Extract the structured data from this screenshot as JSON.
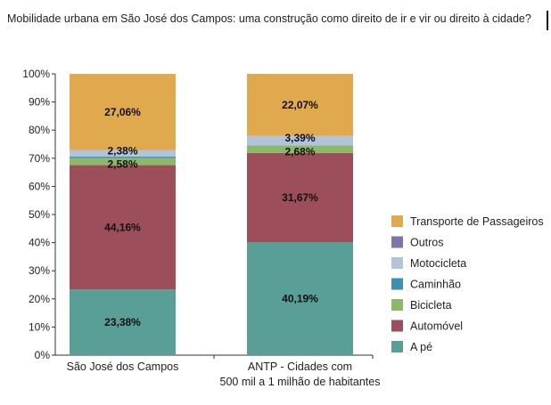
{
  "header": {
    "title": "Mobilidade urbana em São José dos Campos: uma construção como direito de ir e vir ou direito à cidade?"
  },
  "chart_data": {
    "type": "bar",
    "stacked": true,
    "categories": [
      [
        "São José dos Campos"
      ],
      [
        "ANTP - Cidades com",
        "500 mil a 1 milhão de habitantes"
      ]
    ],
    "ylim": [
      0,
      100
    ],
    "yticks": [
      "0%",
      "10%",
      "20%",
      "30%",
      "40%",
      "50%",
      "60%",
      "70%",
      "80%",
      "90%",
      "100%"
    ],
    "legend_position": "right",
    "grid": false,
    "series": [
      {
        "name": "A pé",
        "color": "#5a9e98",
        "values": [
          23.38,
          40.19
        ],
        "labels": [
          "23,38%",
          "40,19%"
        ]
      },
      {
        "name": "Automóvel",
        "color": "#9c4f5b",
        "values": [
          44.16,
          31.67
        ],
        "labels": [
          "44,16%",
          "31,67%"
        ]
      },
      {
        "name": "Bicicleta",
        "color": "#8db86a",
        "values": [
          2.58,
          2.68
        ],
        "labels": [
          "2,58%",
          "2,68%"
        ]
      },
      {
        "name": "Caminhão",
        "color": "#3f8fb0",
        "values": [
          0.44,
          0.0
        ],
        "labels": [
          "",
          ""
        ]
      },
      {
        "name": "Motocicleta",
        "color": "#b0c4dc",
        "values": [
          2.38,
          3.39
        ],
        "labels": [
          "2,38%",
          "3,39%"
        ]
      },
      {
        "name": "Outros",
        "color": "#7f73ad",
        "values": [
          0.0,
          0.0
        ],
        "labels": [
          "",
          ""
        ]
      },
      {
        "name": "Transporte de Passageiros",
        "color": "#e0a94e",
        "values": [
          27.06,
          22.07
        ],
        "labels": [
          "27,06%",
          "22,07%"
        ]
      }
    ]
  }
}
